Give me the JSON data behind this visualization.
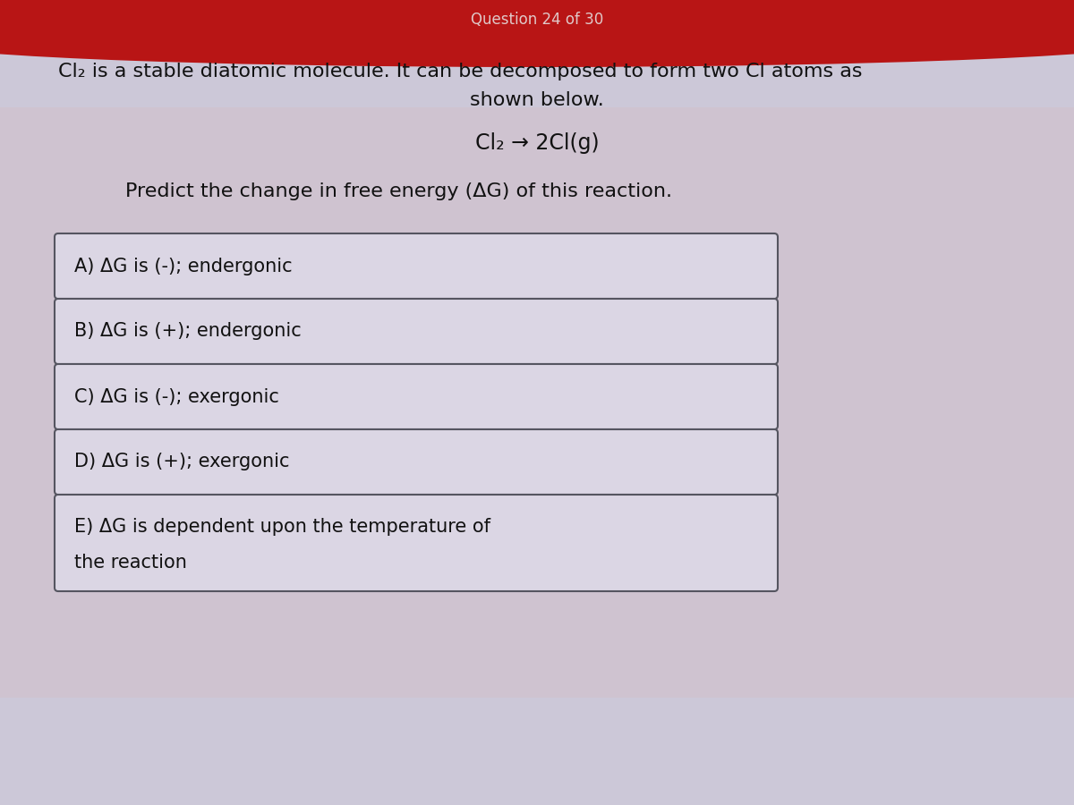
{
  "question_header": "Question 24 of 30",
  "header_bg_color": "#b01515",
  "header_text_color": "#e0c8c8",
  "body_bg_color": "#c8c4d0",
  "intro_line1": "Cl₂ is a stable diatomic molecule. It can be decomposed to form two Cl atoms as",
  "intro_line2": "shown below.",
  "equation": "Cl₂ → 2Cl(g)",
  "question_text": "Predict the change in free energy (ΔG) of this reaction.",
  "options": [
    "A) ΔG is (-); endergonic",
    "B) ΔG is (+); endergonic",
    "C) ΔG is (-); exergonic",
    "D) ΔG is (+); exergonic",
    "E) ΔG is dependent upon the temperature of\nthe reaction"
  ],
  "option_box_facecolor": "#dbd6e4",
  "option_border_color": "#555560",
  "option_text_color": "#111111",
  "intro_text_color": "#111111",
  "figwidth": 12.0,
  "figheight": 9.0
}
